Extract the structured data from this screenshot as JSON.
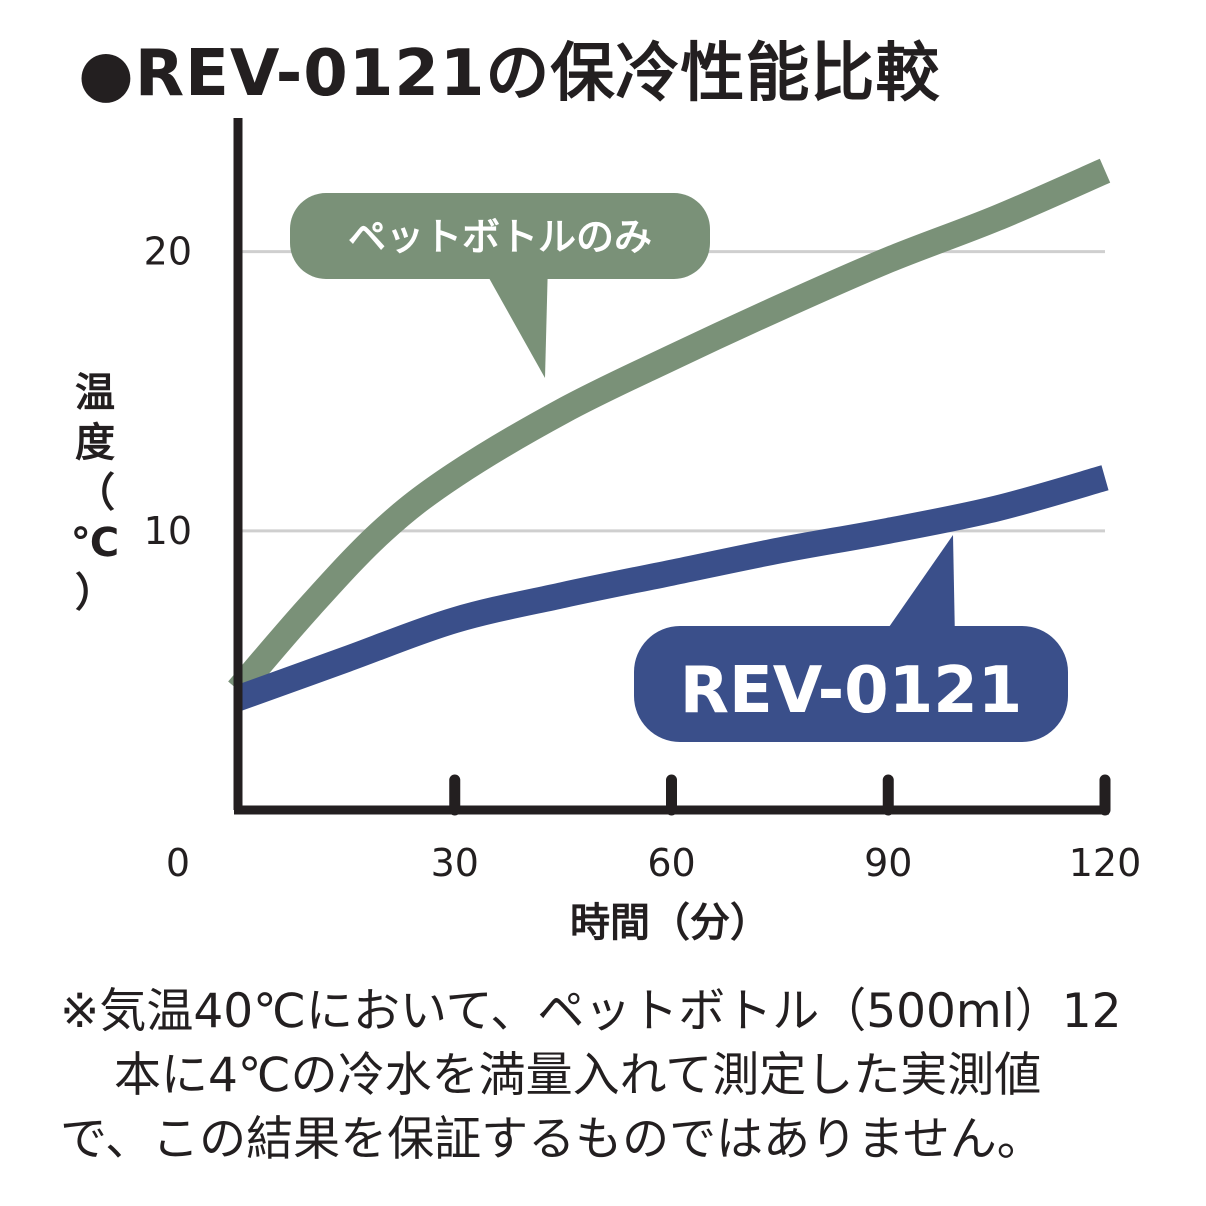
{
  "title": "●REV-0121の保冷性能比較",
  "note_lines": [
    "※気温40℃において、ペットボトル（500ml）12",
    "本に4℃の冷水を満量入れて測定した実測値",
    "で、この結果を保証するものではありません。"
  ],
  "colors": {
    "pet_bottle": "#7a9178",
    "rev": "#3a4f8a",
    "axis": "#231f20",
    "grid": "#cfcfcf"
  },
  "chart_data": {
    "type": "line",
    "xlabel": "時間（分）",
    "ylabel": "温度（℃）",
    "x_ticks": [
      0,
      30,
      60,
      90,
      120
    ],
    "y_ticks": [
      10,
      20
    ],
    "xlim": [
      0,
      120
    ],
    "ylim": [
      0,
      24
    ],
    "grid": "horizontal",
    "series": [
      {
        "name": "ペットボトルのみ",
        "color": "#7a9178",
        "x": [
          0,
          10,
          20,
          30,
          45,
          60,
          75,
          90,
          105,
          120
        ],
        "y": [
          4.3,
          7.3,
          10.0,
          12.0,
          14.3,
          16.2,
          18.0,
          19.7,
          21.2,
          22.9
        ]
      },
      {
        "name": "REV-0121",
        "color": "#3a4f8a",
        "x": [
          0,
          15,
          30,
          45,
          60,
          75,
          90,
          105,
          120
        ],
        "y": [
          4.0,
          5.4,
          6.8,
          7.7,
          8.5,
          9.3,
          10.0,
          10.8,
          11.9
        ]
      }
    ]
  }
}
